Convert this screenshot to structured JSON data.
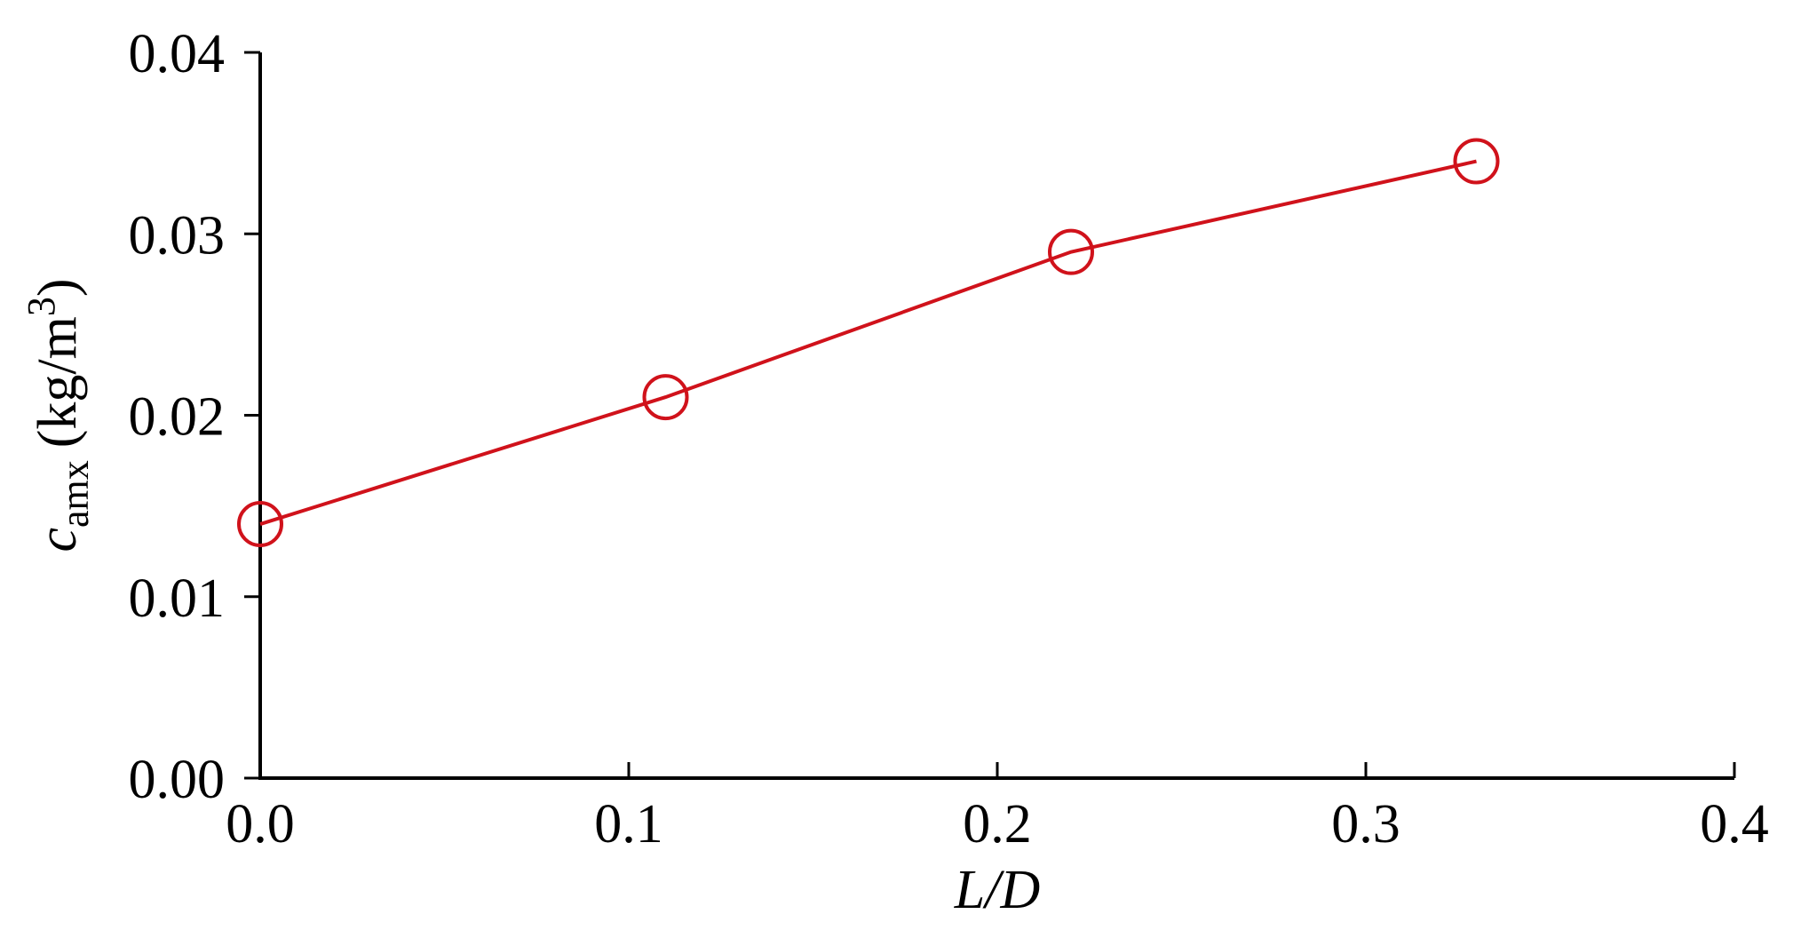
{
  "chart_data": {
    "type": "line",
    "title": "",
    "xlabel": "L/D",
    "ylabel": {
      "symbol": "c",
      "subscript": "amx",
      "unit_prefix": "(kg/m",
      "unit_superscript": "3",
      "unit_suffix": ")"
    },
    "xlim": [
      0.0,
      0.4
    ],
    "ylim": [
      0.0,
      0.04
    ],
    "xticks": [
      {
        "value": 0.0,
        "label": "0.0"
      },
      {
        "value": 0.1,
        "label": "0.1"
      },
      {
        "value": 0.2,
        "label": "0.2"
      },
      {
        "value": 0.3,
        "label": "0.3"
      },
      {
        "value": 0.4,
        "label": "0.4"
      }
    ],
    "yticks": [
      {
        "value": 0.0,
        "label": "0.00"
      },
      {
        "value": 0.01,
        "label": "0.01"
      },
      {
        "value": 0.02,
        "label": "0.02"
      },
      {
        "value": 0.03,
        "label": "0.03"
      },
      {
        "value": 0.04,
        "label": "0.04"
      }
    ],
    "grid": false,
    "legend": "none",
    "series": [
      {
        "color": "#d0121b",
        "marker": "open-circle",
        "x": [
          0.0,
          0.11,
          0.22,
          0.33
        ],
        "y": [
          0.014,
          0.021,
          0.029,
          0.034
        ]
      }
    ]
  }
}
